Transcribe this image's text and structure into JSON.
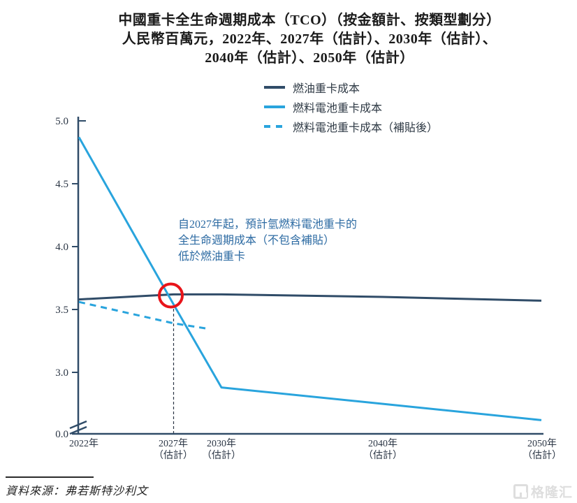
{
  "title": {
    "line1": "中國重卡全生命週期成本（TCO）（按金額計、按類型劃分）",
    "line2": "人民幣百萬元，2022年、2027年（估計）、2030年（估計）、",
    "line3": "2040年（估計）、2050年（估計）"
  },
  "legend": {
    "position": "top",
    "items": [
      {
        "label": "燃油重卡成本",
        "color": "#304c68",
        "style": "solid"
      },
      {
        "label": "燃料電池重卡成本",
        "color": "#29a4dd",
        "style": "solid"
      },
      {
        "label": "燃料電池重卡成本（補貼後）",
        "color": "#29a4dd",
        "style": "dashed"
      }
    ]
  },
  "axes": {
    "y_tick_labels": [
      "5.0",
      "4.5",
      "4.0",
      "3.5",
      "3.0",
      "0.0"
    ],
    "x_labels": [
      {
        "line1": "2022年",
        "line2": ""
      },
      {
        "line1": "2027年",
        "line2": "（估計）"
      },
      {
        "line1": "2030年",
        "line2": "（估計）"
      },
      {
        "line1": "2040年",
        "line2": "（估計）"
      },
      {
        "line1": "2050年",
        "line2": "（估計）"
      }
    ]
  },
  "annotation": {
    "line1": "自2027年起，預計氫燃料電池重卡的",
    "line2": "全生命週期成本（不包含補貼）",
    "line3": "低於燃油重卡",
    "color": "#2d6ba3"
  },
  "marker": {
    "type": "red-circle",
    "year": 2027,
    "color": "#e8141a"
  },
  "source": {
    "label": "資料來源：弗若斯特沙利文"
  },
  "watermark": {
    "label": "格隆汇"
  },
  "chart_data": {
    "type": "line",
    "title": "中國重卡全生命週期成本（TCO）（按金額計、按類型劃分），人民幣百萬元",
    "unit": "人民幣百萬元 (RMB millions)",
    "x_years": [
      2022,
      2027,
      2030,
      2040,
      2050
    ],
    "x_tick_labels": [
      "2022年",
      "2027年（估計）",
      "2030年（估計）",
      "2040年（估計）",
      "2050年（估計）"
    ],
    "y_ticks": [
      0.0,
      3.0,
      3.5,
      4.0,
      4.5,
      5.0
    ],
    "ylim": [
      0.0,
      5.0
    ],
    "y_axis_break": "axis broken between 0.0 and 3.0",
    "grid": false,
    "legend_position": "top-center",
    "series": [
      {
        "name": "燃油重卡成本",
        "color": "#304c68",
        "style": "solid",
        "x": [
          2022,
          2027,
          2030,
          2040,
          2050
        ],
        "values": [
          3.58,
          3.62,
          3.62,
          3.6,
          3.57
        ]
      },
      {
        "name": "燃料電池重卡成本",
        "color": "#29a4dd",
        "style": "solid",
        "x": [
          2022,
          2027,
          2030,
          2040,
          2050
        ],
        "values": [
          4.87,
          3.54,
          2.88,
          2.75,
          2.62
        ]
      },
      {
        "name": "燃料電池重卡成本（補貼後）",
        "color": "#29a4dd",
        "style": "dashed",
        "x": [
          2022,
          2027,
          2029
        ],
        "values": [
          3.56,
          3.39,
          3.35
        ],
        "note": "merges into the unsubsidized fuel-cell line around 2029"
      }
    ],
    "crossover": {
      "year": 2027,
      "value": 3.6,
      "annotation": "自2027年起，預計氫燃料電池重卡的全生命週期成本（不包含補貼）低於燃油重卡"
    }
  }
}
